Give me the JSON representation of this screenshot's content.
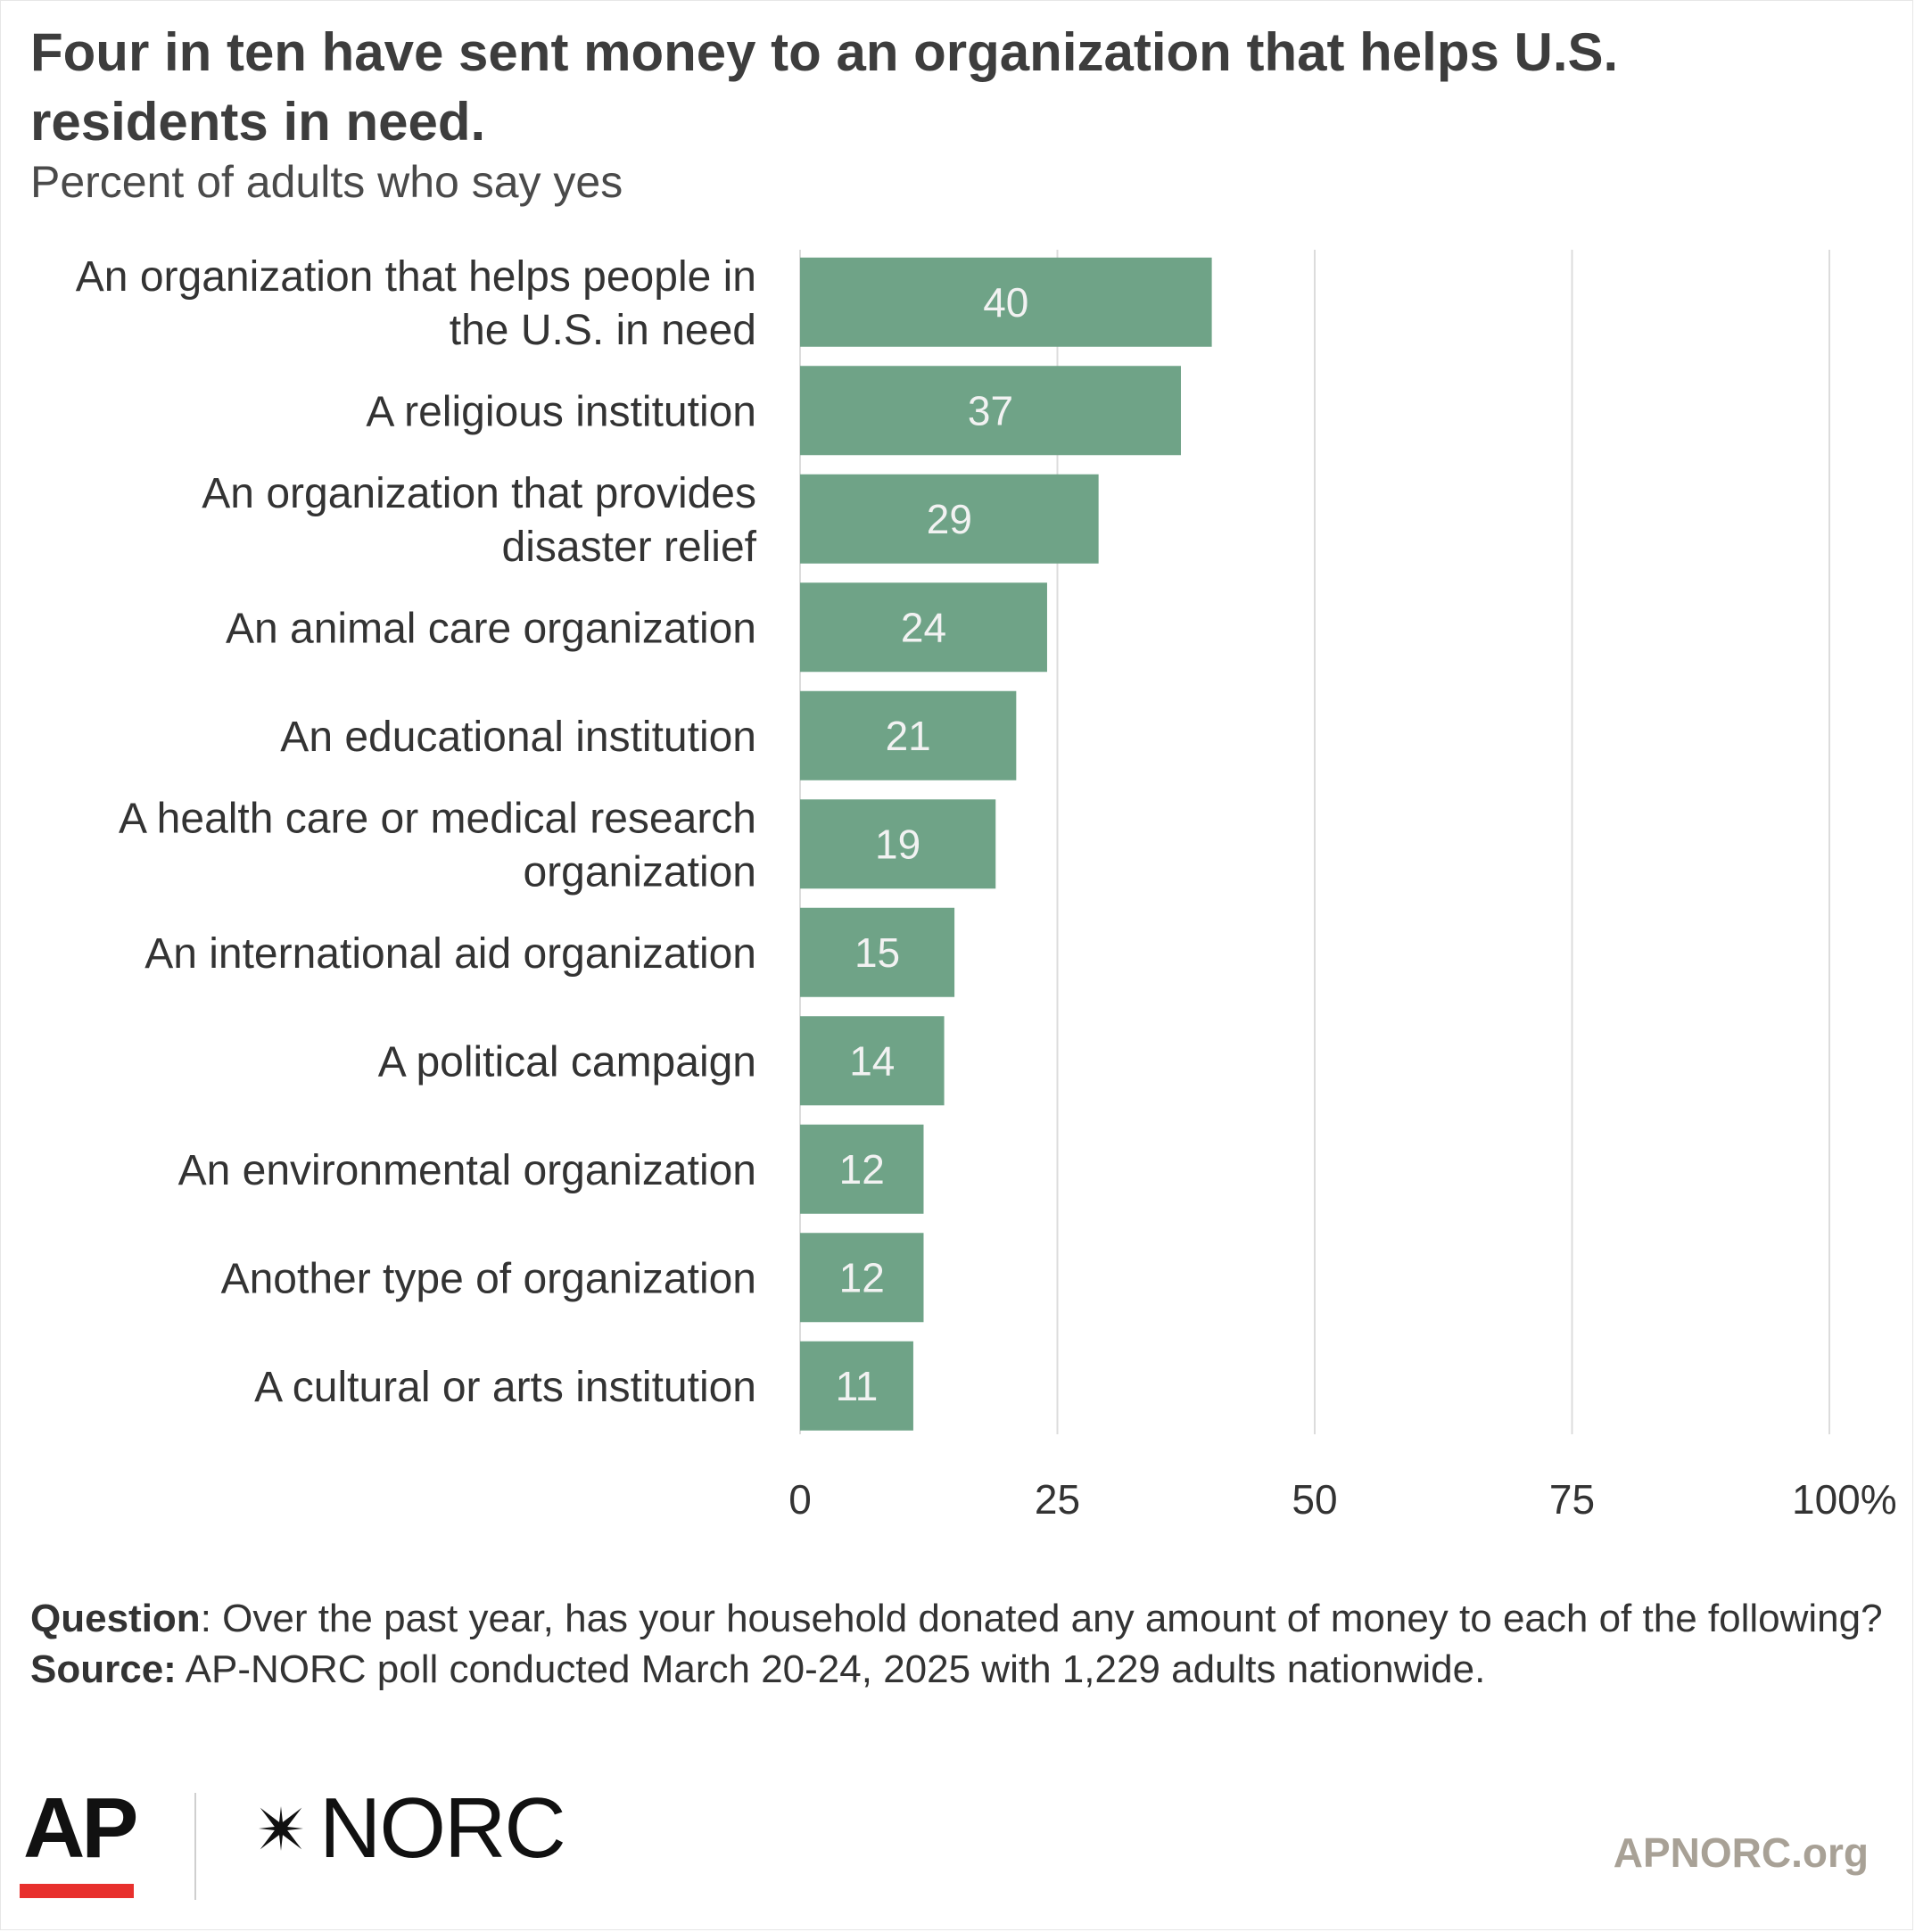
{
  "header": {
    "title": "Four in ten have sent money to an organization that helps U.S. residents in need.",
    "subtitle": "Percent of adults who say yes"
  },
  "chart_data": {
    "type": "bar",
    "orientation": "horizontal",
    "title": "Four in ten have sent money to an organization that helps U.S. residents in need.",
    "subtitle": "Percent of adults who say yes",
    "categories": [
      [
        "An organization that helps people in",
        "the U.S. in need"
      ],
      [
        "A religious institution"
      ],
      [
        "An organization that provides",
        "disaster relief"
      ],
      [
        "An animal care organization"
      ],
      [
        "An educational institution"
      ],
      [
        "A health care or medical research",
        "organization"
      ],
      [
        "An international aid organization"
      ],
      [
        "A political campaign"
      ],
      [
        "An environmental organization"
      ],
      [
        "Another type of organization"
      ],
      [
        "A cultural or arts institution"
      ]
    ],
    "values": [
      40,
      37,
      29,
      24,
      21,
      19,
      15,
      14,
      12,
      12,
      11
    ],
    "xlim": [
      0,
      100
    ],
    "ticks": [
      0,
      25,
      50,
      75,
      100
    ],
    "tick_labels": [
      "0",
      "25",
      "50",
      "75",
      "100%"
    ],
    "grid": true,
    "bar_color": "#6fa387",
    "grid_color": "#dcdcdc",
    "value_label_color": "#f2f2f2"
  },
  "notes": {
    "question_label": "Question",
    "question_text": ": Over the past year, has your household donated any amount of money to each of the following?",
    "source_label": "Source:",
    "source_text": " AP-NORC poll conducted March 20-24, 2025 with 1,229 adults nationwide."
  },
  "footer": {
    "ap_logo": "AP",
    "norc_logo": "NORC",
    "site": "APNORC.org",
    "ap_red": "#e8302d",
    "site_color": "#a8a196"
  }
}
